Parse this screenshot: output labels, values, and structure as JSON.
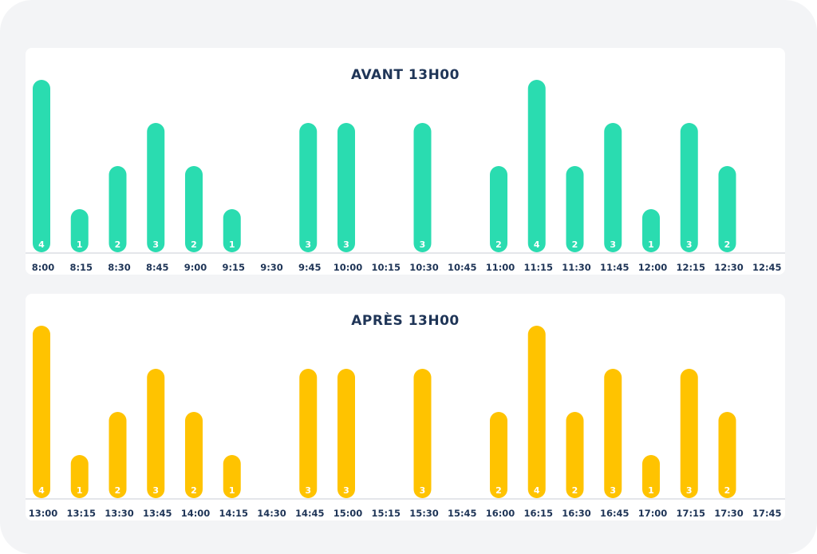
{
  "chart_data": [
    {
      "type": "bar",
      "title": "AVANT 13H00",
      "categories": [
        "8:00",
        "8:15",
        "8:30",
        "8:45",
        "9:00",
        "9:15",
        "9:30",
        "9:45",
        "10:00",
        "10:15",
        "10:30",
        "10:45",
        "11:00",
        "11:15",
        "11:30",
        "11:45",
        "12:00",
        "12:15",
        "12:30",
        "12:45"
      ],
      "values": [
        4,
        1,
        2,
        3,
        2,
        1,
        0,
        3,
        3,
        0,
        3,
        0,
        2,
        4,
        2,
        3,
        1,
        3,
        2,
        0
      ],
      "ylim": [
        0,
        4
      ],
      "color": "#2adcb0",
      "grid": false,
      "data_labels": true
    },
    {
      "type": "bar",
      "title": "APRÈS 13H00",
      "categories": [
        "13:00",
        "13:15",
        "13:30",
        "13:45",
        "14:00",
        "14:15",
        "14:30",
        "14:45",
        "15:00",
        "15:15",
        "15:30",
        "15:45",
        "16:00",
        "16:15",
        "16:30",
        "16:45",
        "17:00",
        "17:15",
        "17:30",
        "17:45"
      ],
      "values": [
        4,
        1,
        2,
        3,
        2,
        1,
        0,
        3,
        3,
        0,
        3,
        0,
        2,
        4,
        2,
        3,
        1,
        3,
        2,
        0
      ],
      "ylim": [
        0,
        4
      ],
      "color": "#ffc300",
      "grid": false,
      "data_labels": true
    }
  ]
}
